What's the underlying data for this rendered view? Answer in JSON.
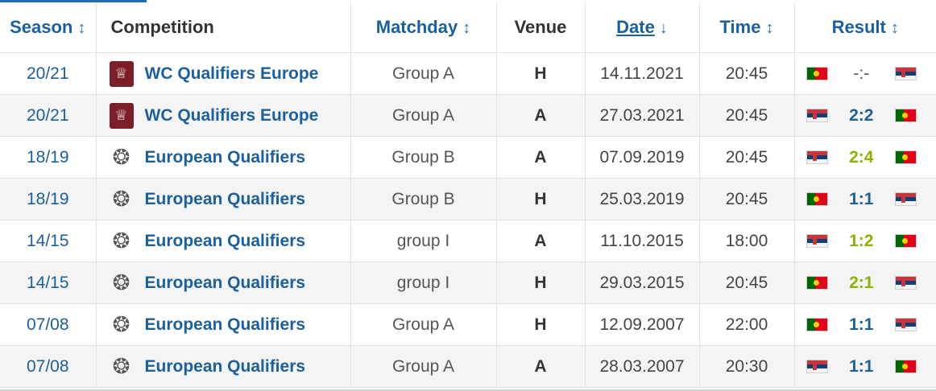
{
  "headers": {
    "season": "Season",
    "competition": "Competition",
    "matchday": "Matchday",
    "venue": "Venue",
    "date": "Date",
    "time": "Time",
    "result": "Result"
  },
  "sort_icons": {
    "season": "↕",
    "matchday": "↕",
    "date": "↓",
    "time": "↕",
    "result": "↕"
  },
  "colors": {
    "link": "#1b5f9c",
    "win_score": "#8ab300",
    "wc_logo": "#7b1e27"
  },
  "rows": [
    {
      "season": "20/21",
      "competition": "WC Qualifiers Europe",
      "logo": "wc-qualifiers-logo-icon",
      "matchday": "Group A",
      "venue": "H",
      "date": "14.11.2021",
      "time": "20:45",
      "home_flag": "portugal",
      "away_flag": "serbia",
      "score": "-:-",
      "score_state": "pending"
    },
    {
      "season": "20/21",
      "competition": "WC Qualifiers Europe",
      "logo": "wc-qualifiers-logo-icon",
      "matchday": "Group A",
      "venue": "A",
      "date": "27.03.2021",
      "time": "20:45",
      "home_flag": "serbia",
      "away_flag": "portugal",
      "score": "2:2",
      "score_state": "draw"
    },
    {
      "season": "18/19",
      "competition": "European Qualifiers",
      "logo": "european-qualifiers-logo-icon",
      "matchday": "Group B",
      "venue": "A",
      "date": "07.09.2019",
      "time": "20:45",
      "home_flag": "serbia",
      "away_flag": "portugal",
      "score": "2:4",
      "score_state": "win"
    },
    {
      "season": "18/19",
      "competition": "European Qualifiers",
      "logo": "european-qualifiers-logo-icon",
      "matchday": "Group B",
      "venue": "H",
      "date": "25.03.2019",
      "time": "20:45",
      "home_flag": "portugal",
      "away_flag": "serbia",
      "score": "1:1",
      "score_state": "draw"
    },
    {
      "season": "14/15",
      "competition": "European Qualifiers",
      "logo": "european-qualifiers-logo-icon",
      "matchday": "group I",
      "venue": "A",
      "date": "11.10.2015",
      "time": "18:00",
      "home_flag": "serbia",
      "away_flag": "portugal",
      "score": "1:2",
      "score_state": "win"
    },
    {
      "season": "14/15",
      "competition": "European Qualifiers",
      "logo": "european-qualifiers-logo-icon",
      "matchday": "group I",
      "venue": "H",
      "date": "29.03.2015",
      "time": "20:45",
      "home_flag": "portugal",
      "away_flag": "serbia",
      "score": "2:1",
      "score_state": "win"
    },
    {
      "season": "07/08",
      "competition": "European Qualifiers",
      "logo": "european-qualifiers-logo-icon",
      "matchday": "Group A",
      "venue": "H",
      "date": "12.09.2007",
      "time": "22:00",
      "home_flag": "portugal",
      "away_flag": "serbia",
      "score": "1:1",
      "score_state": "draw"
    },
    {
      "season": "07/08",
      "competition": "European Qualifiers",
      "logo": "european-qualifiers-logo-icon",
      "matchday": "Group A",
      "venue": "A",
      "date": "28.03.2007",
      "time": "20:30",
      "home_flag": "serbia",
      "away_flag": "portugal",
      "score": "1:1",
      "score_state": "draw"
    }
  ]
}
